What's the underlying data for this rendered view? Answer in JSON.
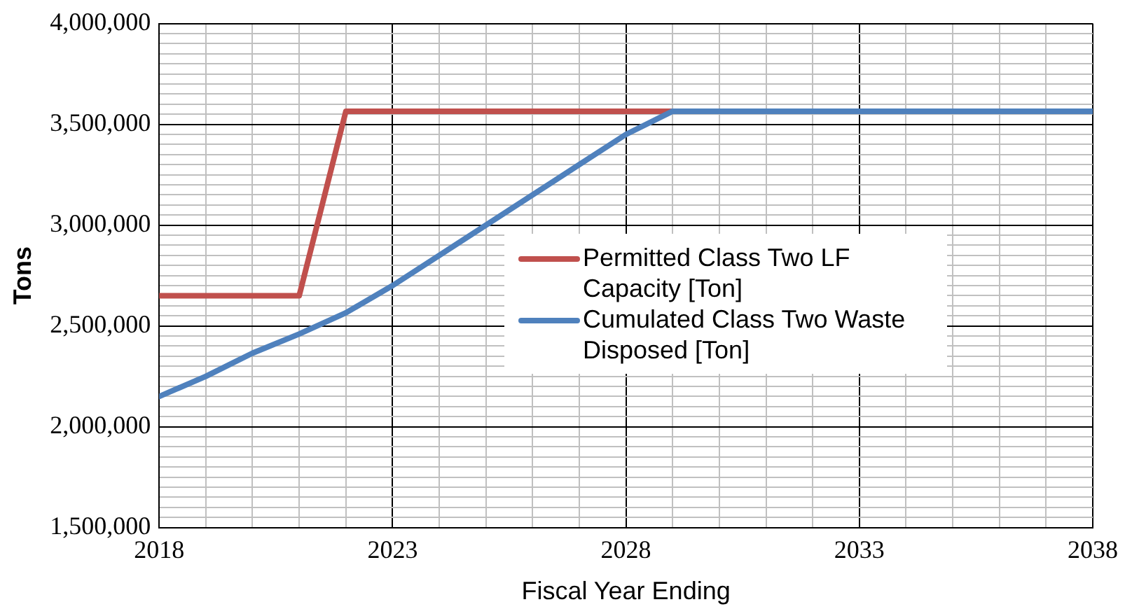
{
  "chart_data": {
    "type": "line",
    "xlabel": "Fiscal Year Ending",
    "ylabel": "Tons",
    "x": [
      2018,
      2019,
      2020,
      2021,
      2022,
      2023,
      2024,
      2025,
      2026,
      2027,
      2028,
      2029,
      2030,
      2031,
      2032,
      2033,
      2034,
      2035,
      2036,
      2037,
      2038
    ],
    "series": [
      {
        "name": "Permitted Class Two LF Capacity [Ton]",
        "color": "#c0504d",
        "values": [
          2650000,
          2650000,
          2650000,
          2650000,
          3565000,
          3565000,
          3565000,
          3565000,
          3565000,
          3565000,
          3565000,
          3565000,
          null,
          null,
          null,
          null,
          null,
          null,
          null,
          null,
          null
        ]
      },
      {
        "name": "Cumulated Class Two Waste Disposed [Ton]",
        "color": "#4f81bd",
        "values": [
          2150000,
          2250000,
          2365000,
          2460000,
          2565000,
          2700000,
          2850000,
          3000000,
          3150000,
          3300000,
          3450000,
          3565000,
          3565000,
          3565000,
          3565000,
          3565000,
          3565000,
          3565000,
          3565000,
          3565000,
          3565000
        ]
      }
    ],
    "xlim": [
      2018,
      2038
    ],
    "xticks": [
      2018,
      {
        "value": 2019,
        "label": null
      },
      {
        "value": 2020,
        "label": null
      },
      {
        "value": 2021,
        "label": null
      },
      {
        "value": 2022,
        "label": null
      },
      2023,
      {
        "value": 2024,
        "label": null
      },
      {
        "value": 2025,
        "label": null
      },
      {
        "value": 2026,
        "label": null
      },
      {
        "value": 2027,
        "label": null
      },
      2028,
      {
        "value": 2029,
        "label": null
      },
      {
        "value": 2030,
        "label": null
      },
      {
        "value": 2031,
        "label": null
      },
      {
        "value": 2032,
        "label": null
      },
      2033,
      {
        "value": 2034,
        "label": null
      },
      {
        "value": 2035,
        "label": null
      },
      {
        "value": 2036,
        "label": null
      },
      {
        "value": 2037,
        "label": null
      },
      2038
    ],
    "ylim": [
      1500000,
      4000000
    ],
    "yticks": [
      {
        "value": 1500000,
        "label": "1,500,000"
      },
      {
        "value": 1550000,
        "label": null
      },
      {
        "value": 1600000,
        "label": null
      },
      {
        "value": 1650000,
        "label": null
      },
      {
        "value": 1700000,
        "label": null
      },
      {
        "value": 1750000,
        "label": null
      },
      {
        "value": 1800000,
        "label": null
      },
      {
        "value": 1850000,
        "label": null
      },
      {
        "value": 1900000,
        "label": null
      },
      {
        "value": 1950000,
        "label": null
      },
      {
        "value": 2000000,
        "label": "2,000,000"
      },
      {
        "value": 2050000,
        "label": null
      },
      {
        "value": 2100000,
        "label": null
      },
      {
        "value": 2150000,
        "label": null
      },
      {
        "value": 2200000,
        "label": null
      },
      {
        "value": 2250000,
        "label": null
      },
      {
        "value": 2300000,
        "label": null
      },
      {
        "value": 2350000,
        "label": null
      },
      {
        "value": 2400000,
        "label": null
      },
      {
        "value": 2450000,
        "label": null
      },
      {
        "value": 2500000,
        "label": "2,500,000"
      },
      {
        "value": 2550000,
        "label": null
      },
      {
        "value": 2600000,
        "label": null
      },
      {
        "value": 2650000,
        "label": null
      },
      {
        "value": 2700000,
        "label": null
      },
      {
        "value": 2750000,
        "label": null
      },
      {
        "value": 2800000,
        "label": null
      },
      {
        "value": 2850000,
        "label": null
      },
      {
        "value": 2900000,
        "label": null
      },
      {
        "value": 2950000,
        "label": null
      },
      {
        "value": 3000000,
        "label": "3,000,000"
      },
      {
        "value": 3050000,
        "label": null
      },
      {
        "value": 3100000,
        "label": null
      },
      {
        "value": 3150000,
        "label": null
      },
      {
        "value": 3200000,
        "label": null
      },
      {
        "value": 3250000,
        "label": null
      },
      {
        "value": 3300000,
        "label": null
      },
      {
        "value": 3350000,
        "label": null
      },
      {
        "value": 3400000,
        "label": null
      },
      {
        "value": 3450000,
        "label": null
      },
      {
        "value": 3500000,
        "label": "3,500,000"
      },
      {
        "value": 3550000,
        "label": null
      },
      {
        "value": 3600000,
        "label": null
      },
      {
        "value": 3650000,
        "label": null
      },
      {
        "value": 3700000,
        "label": null
      },
      {
        "value": 3750000,
        "label": null
      },
      {
        "value": 3800000,
        "label": null
      },
      {
        "value": 3850000,
        "label": null
      },
      {
        "value": 3900000,
        "label": null
      },
      {
        "value": 3950000,
        "label": null
      },
      {
        "value": 4000000,
        "label": "4,000,000"
      }
    ],
    "grid": true,
    "legend": "right",
    "marker": "none",
    "line_style": "solid"
  }
}
